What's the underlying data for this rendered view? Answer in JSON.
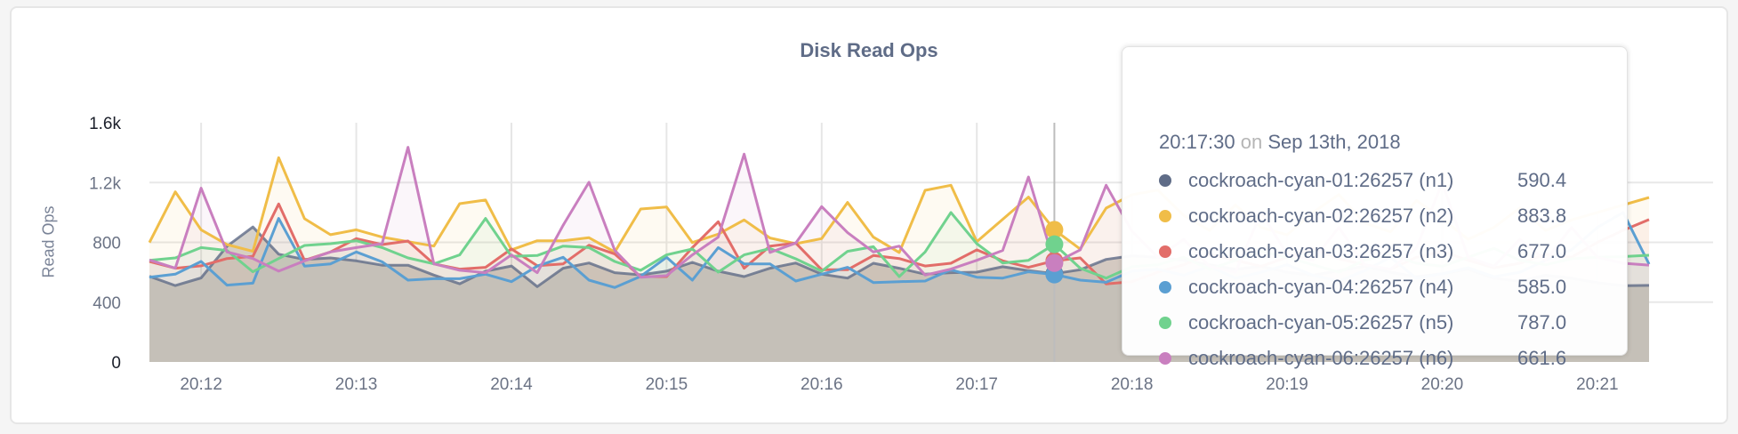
{
  "chart_data": {
    "type": "area",
    "title": "Disk Read Ops",
    "ylabel": "Read Ops",
    "xlabel": "",
    "ylim": [
      0,
      1600
    ],
    "yticks": [
      {
        "value": 0,
        "label": "0"
      },
      {
        "value": 400,
        "label": "400"
      },
      {
        "value": 800,
        "label": "800"
      },
      {
        "value": 1200,
        "label": "1.2k"
      },
      {
        "value": 1600,
        "label": "1.6k"
      }
    ],
    "xticks": [
      "20:12",
      "20:13",
      "20:14",
      "20:15",
      "20:16",
      "20:17",
      "20:18",
      "20:19",
      "20:20",
      "20:21"
    ],
    "grid": true,
    "x": [
      "20:11:40",
      "20:11:50",
      "20:12:00",
      "20:12:10",
      "20:12:20",
      "20:12:30",
      "20:12:40",
      "20:12:50",
      "20:13:00",
      "20:13:10",
      "20:13:20",
      "20:13:30",
      "20:13:40",
      "20:13:50",
      "20:14:00",
      "20:14:10",
      "20:14:20",
      "20:14:30",
      "20:14:40",
      "20:14:50",
      "20:15:00",
      "20:15:10",
      "20:15:20",
      "20:15:30",
      "20:15:40",
      "20:15:50",
      "20:16:00",
      "20:16:10",
      "20:16:20",
      "20:16:30",
      "20:16:40",
      "20:16:50",
      "20:17:00",
      "20:17:10",
      "20:17:20",
      "20:17:30",
      "20:17:40",
      "20:17:50",
      "20:18:00",
      "20:18:10",
      "20:18:20",
      "20:18:30",
      "20:18:40",
      "20:18:50",
      "20:19:00",
      "20:19:10",
      "20:19:20",
      "20:19:30",
      "20:19:40",
      "20:19:50",
      "20:20:00",
      "20:20:10",
      "20:20:20",
      "20:20:30",
      "20:20:40",
      "20:20:50",
      "20:21:00",
      "20:21:10",
      "20:21:20"
    ],
    "series": [
      {
        "name": "cockroach-cyan-01:26257 (n1)",
        "color": "#5f6c87",
        "values": [
          573,
          511,
          562,
          774,
          903,
          721,
          686,
          696,
          676,
          647,
          647,
          581,
          523,
          607,
          642,
          504,
          627,
          662,
          597,
          583,
          607,
          666,
          607,
          571,
          627,
          662,
          587,
          561,
          660,
          627,
          587,
          597,
          601,
          637,
          611,
          590.4,
          617,
          686,
          710,
          700,
          680,
          650,
          620,
          640,
          600,
          580,
          610,
          640,
          600,
          570,
          590,
          620,
          560,
          540,
          580,
          560,
          530,
          510,
          512
        ]
      },
      {
        "name": "cockroach-cyan-02:26257 (n2)",
        "color": "#f0bd48",
        "values": [
          799,
          1138,
          884,
          785,
          740,
          1366,
          958,
          851,
          884,
          835,
          805,
          775,
          1059,
          1083,
          750,
          811,
          811,
          831,
          736,
          1023,
          1037,
          799,
          855,
          950,
          829,
          791,
          825,
          1067,
          835,
          732,
          1148,
          1182,
          805,
          954,
          1103,
          883.8,
          755,
          1029,
          1118,
          1150,
          980,
          880,
          1050,
          900,
          850,
          1000,
          1120,
          930,
          870,
          1080,
          960,
          820,
          900,
          1030,
          880,
          950,
          1000,
          1050,
          1100
        ]
      },
      {
        "name": "cockroach-cyan-03:26257 (n3)",
        "color": "#e26d69",
        "values": [
          672,
          627,
          643,
          692,
          706,
          1057,
          680,
          736,
          825,
          785,
          809,
          656,
          621,
          633,
          756,
          644,
          656,
          781,
          722,
          571,
          571,
          765,
          938,
          627,
          775,
          795,
          617,
          617,
          712,
          692,
          642,
          660,
          750,
          676,
          633,
          677.0,
          696,
          522,
          537,
          600,
          650,
          720,
          680,
          640,
          700,
          760,
          690,
          650,
          620,
          700,
          740,
          680,
          630,
          660,
          720,
          700,
          800,
          880,
          952
        ]
      },
      {
        "name": "cockroach-cyan-04:26257 (n4)",
        "color": "#5b9fd2",
        "values": [
          567,
          587,
          672,
          514,
          527,
          960,
          641,
          656,
          736,
          670,
          547,
          557,
          557,
          587,
          537,
          641,
          700,
          547,
          498,
          573,
          700,
          547,
          765,
          656,
          656,
          541,
          587,
          633,
          531,
          537,
          541,
          617,
          567,
          561,
          603,
          585.0,
          547,
          533,
          607,
          620,
          580,
          640,
          560,
          600,
          650,
          580,
          540,
          610,
          700,
          560,
          590,
          630,
          570,
          600,
          680,
          750,
          900,
          1000,
          654
        ]
      },
      {
        "name": "cockroach-cyan-05:26257 (n5)",
        "color": "#70d28e",
        "values": [
          680,
          696,
          765,
          746,
          603,
          692,
          779,
          791,
          811,
          765,
          696,
          656,
          716,
          960,
          706,
          712,
          775,
          765,
          672,
          613,
          716,
          756,
          601,
          716,
          759,
          690,
          607,
          740,
          771,
          571,
          736,
          1000,
          791,
          662,
          680,
          787.0,
          627,
          561,
          637,
          650,
          700,
          620,
          680,
          740,
          700,
          650,
          600,
          680,
          720,
          660,
          640,
          700,
          760,
          680,
          650,
          690,
          700,
          705,
          714
        ]
      },
      {
        "name": "cockroach-cyan-06:26257 (n6)",
        "color": "#c97fbf",
        "values": [
          682,
          627,
          1162,
          736,
          692,
          607,
          676,
          736,
          765,
          791,
          1436,
          656,
          613,
          597,
          716,
          597,
          914,
          1202,
          746,
          567,
          577,
          716,
          835,
          1390,
          732,
          795,
          1039,
          865,
          736,
          775,
          581,
          621,
          680,
          746,
          1237,
          661.6,
          750,
          1182,
          875,
          700,
          820,
          640,
          600,
          1000,
          720,
          680,
          900,
          650,
          620,
          760,
          1200,
          700,
          640,
          820,
          680,
          900,
          700,
          660,
          648
        ]
      }
    ],
    "hover_index": 35
  },
  "tooltip": {
    "time": "20:17:30",
    "on": "on",
    "date": "Sep 13th, 2018",
    "rows": [
      {
        "name": "cockroach-cyan-01:26257 (n1)",
        "value": "590.4",
        "color": "#5f6c87"
      },
      {
        "name": "cockroach-cyan-02:26257 (n2)",
        "value": "883.8",
        "color": "#f0bd48"
      },
      {
        "name": "cockroach-cyan-03:26257 (n3)",
        "value": "677.0",
        "color": "#e26d69"
      },
      {
        "name": "cockroach-cyan-04:26257 (n4)",
        "value": "585.0",
        "color": "#5b9fd2"
      },
      {
        "name": "cockroach-cyan-05:26257 (n5)",
        "value": "787.0",
        "color": "#70d28e"
      },
      {
        "name": "cockroach-cyan-06:26257 (n6)",
        "value": "661.6",
        "color": "#c97fbf"
      }
    ]
  }
}
